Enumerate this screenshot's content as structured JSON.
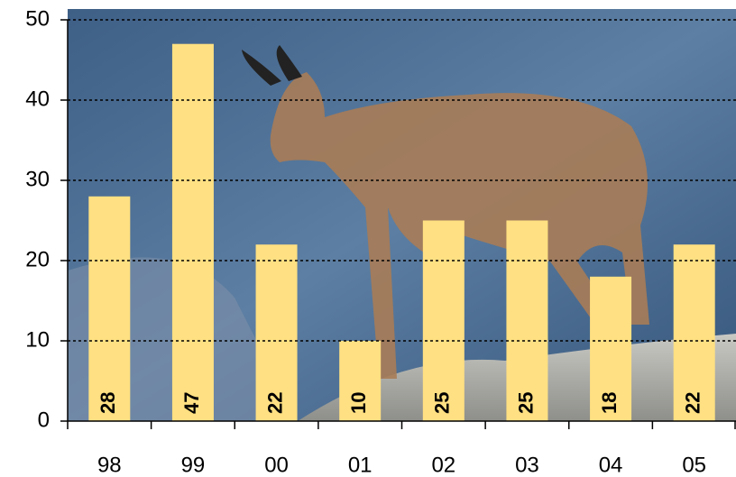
{
  "chart_data": {
    "type": "bar",
    "categories": [
      "98",
      "99",
      "00",
      "01",
      "02",
      "03",
      "04",
      "05"
    ],
    "values": [
      28,
      47,
      22,
      10,
      25,
      25,
      18,
      22
    ],
    "color": "#ffe082",
    "ylim": [
      0,
      50
    ],
    "yticks": [
      0,
      10,
      20,
      30,
      40,
      50
    ],
    "grid": true
  }
}
